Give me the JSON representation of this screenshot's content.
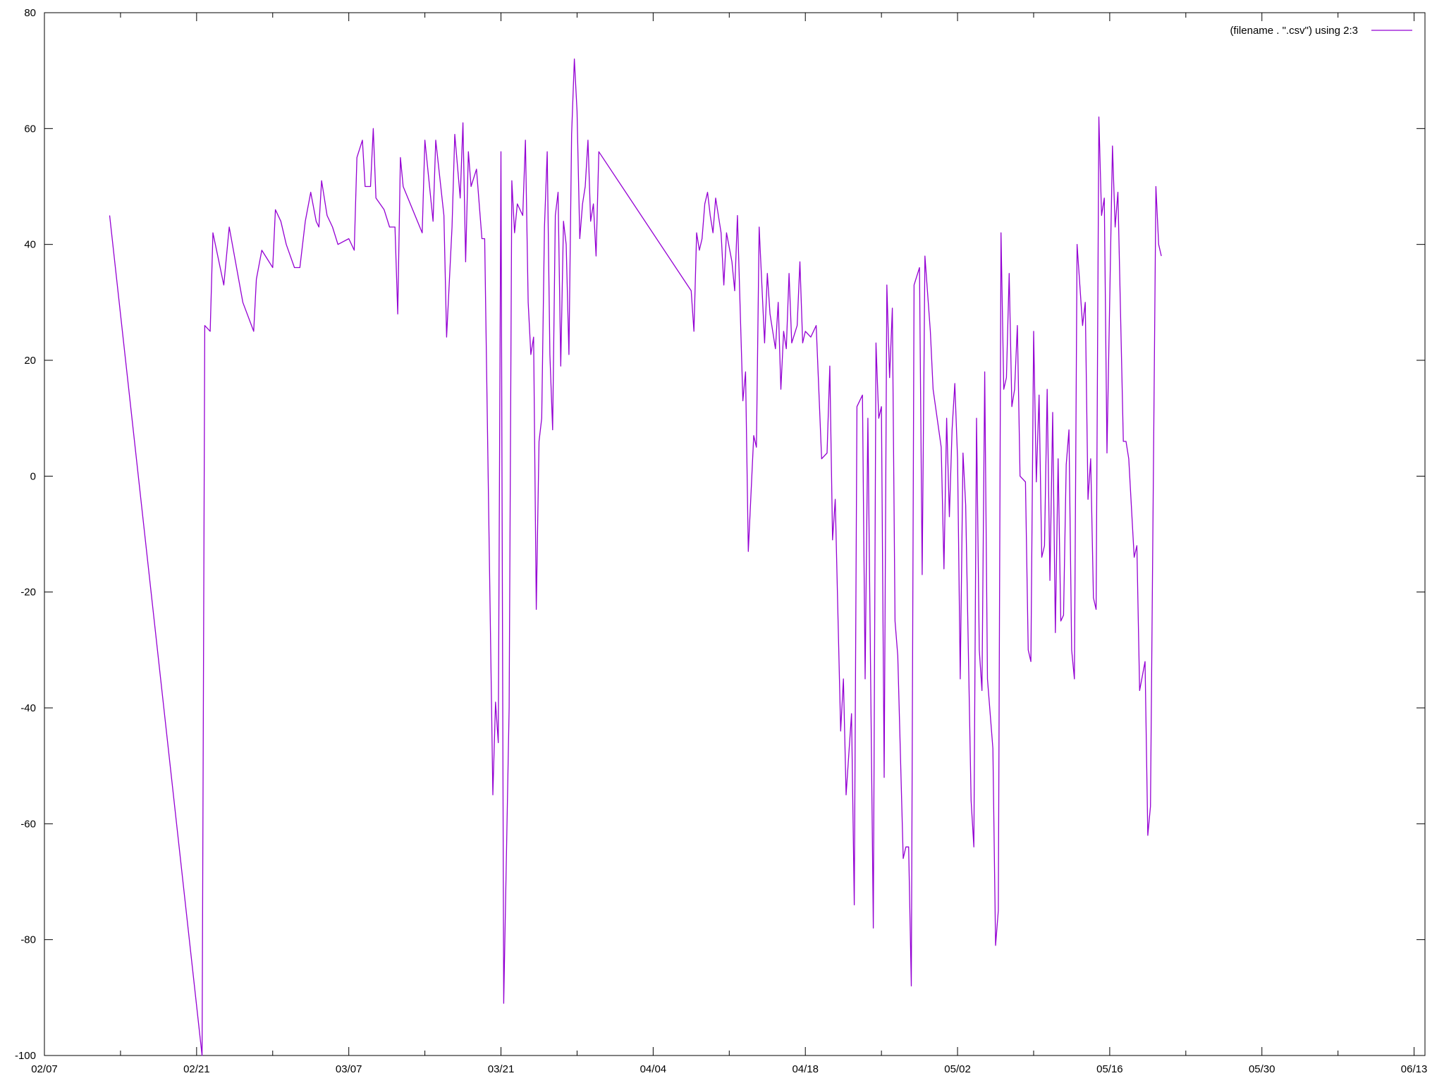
{
  "chart_data": {
    "type": "line",
    "title": "",
    "xlabel": "",
    "ylabel": "",
    "x_axis": {
      "type": "date",
      "range": [
        "2000-02-07",
        "2000-06-13"
      ],
      "tick_format": "MM/DD",
      "major_ticks": [
        "02/07",
        "02/21",
        "03/07",
        "03/21",
        "04/04",
        "04/18",
        "05/02",
        "05/16",
        "05/30",
        "06/13"
      ],
      "minor_tick_step_days": 7
    },
    "y_axis": {
      "range": [
        -100,
        80
      ],
      "ticks": [
        -100,
        -80,
        -60,
        -40,
        -20,
        0,
        20,
        40,
        60,
        80
      ]
    },
    "grid": false,
    "legend": {
      "position": "top-right"
    },
    "series": [
      {
        "name": "(filename . \".csv\") using 2:3",
        "color": "#9400d3",
        "points": [
          [
            "2000-02-13",
            45
          ],
          [
            "2000-02-21 12:00",
            -100
          ],
          [
            "2000-02-21 18:00",
            26
          ],
          [
            "2000-02-22 06:00",
            25
          ],
          [
            "2000-02-22 12:00",
            42
          ],
          [
            "2000-02-23 12:00",
            33
          ],
          [
            "2000-02-24",
            43
          ],
          [
            "2000-02-25 06:00",
            30
          ],
          [
            "2000-02-26 06:00",
            25
          ],
          [
            "2000-02-26 12:00",
            34
          ],
          [
            "2000-02-27",
            39
          ],
          [
            "2000-02-28",
            36
          ],
          [
            "2000-02-28 06:00",
            46
          ],
          [
            "2000-02-28 18:00",
            44
          ],
          [
            "2000-02-29 06:00",
            40
          ],
          [
            "2000-03-01",
            36
          ],
          [
            "2000-03-01 12:00",
            36
          ],
          [
            "2000-03-02",
            44
          ],
          [
            "2000-03-02 12:00",
            49
          ],
          [
            "2000-03-03",
            44
          ],
          [
            "2000-03-03 06:00",
            43
          ],
          [
            "2000-03-03 12:00",
            51
          ],
          [
            "2000-03-04",
            45
          ],
          [
            "2000-03-04 12:00",
            43
          ],
          [
            "2000-03-05",
            40
          ],
          [
            "2000-03-06",
            41
          ],
          [
            "2000-03-06 12:00",
            39
          ],
          [
            "2000-03-06 18:00",
            55
          ],
          [
            "2000-03-07 06:00",
            58
          ],
          [
            "2000-03-07 12:00",
            50
          ],
          [
            "2000-03-08",
            50
          ],
          [
            "2000-03-08 06:00",
            60
          ],
          [
            "2000-03-08 12:00",
            48
          ],
          [
            "2000-03-09 06:00",
            46
          ],
          [
            "2000-03-09 18:00",
            43
          ],
          [
            "2000-03-10 06:00",
            43
          ],
          [
            "2000-03-10 12:00",
            28
          ],
          [
            "2000-03-10 18:00",
            55
          ],
          [
            "2000-03-11",
            50
          ],
          [
            "2000-03-12 18:00",
            42
          ],
          [
            "2000-03-13",
            58
          ],
          [
            "2000-03-13 18:00",
            44
          ],
          [
            "2000-03-14",
            58
          ],
          [
            "2000-03-14 18:00",
            45
          ],
          [
            "2000-03-15",
            24
          ],
          [
            "2000-03-15 12:00",
            43
          ],
          [
            "2000-03-15 18:00",
            59
          ],
          [
            "2000-03-16 06:00",
            48
          ],
          [
            "2000-03-16 12:00",
            61
          ],
          [
            "2000-03-16 18:00",
            37
          ],
          [
            "2000-03-17",
            56
          ],
          [
            "2000-03-17 06:00",
            50
          ],
          [
            "2000-03-17 18:00",
            53
          ],
          [
            "2000-03-18 06:00",
            41
          ],
          [
            "2000-03-18 12:00",
            41
          ],
          [
            "2000-03-19 06:00",
            -55
          ],
          [
            "2000-03-19 12:00",
            -39
          ],
          [
            "2000-03-19 18:00",
            -46
          ],
          [
            "2000-03-20",
            56
          ],
          [
            "2000-03-20 06:00",
            -91
          ],
          [
            "2000-03-20 18:00",
            -40
          ],
          [
            "2000-03-21",
            51
          ],
          [
            "2000-03-21 06:00",
            42
          ],
          [
            "2000-03-21 12:00",
            47
          ],
          [
            "2000-03-22",
            45
          ],
          [
            "2000-03-22 06:00",
            58
          ],
          [
            "2000-03-22 12:00",
            30
          ],
          [
            "2000-03-22 18:00",
            21
          ],
          [
            "2000-03-23",
            24
          ],
          [
            "2000-03-23 06:00",
            -23
          ],
          [
            "2000-03-23 12:00",
            6
          ],
          [
            "2000-03-23 18:00",
            10
          ],
          [
            "2000-03-24",
            43
          ],
          [
            "2000-03-24 06:00",
            56
          ],
          [
            "2000-03-24 12:00",
            21
          ],
          [
            "2000-03-24 18:00",
            8
          ],
          [
            "2000-03-25",
            45
          ],
          [
            "2000-03-25 06:00",
            49
          ],
          [
            "2000-03-25 12:00",
            19
          ],
          [
            "2000-03-25 18:00",
            44
          ],
          [
            "2000-03-26",
            40
          ],
          [
            "2000-03-26 06:00",
            21
          ],
          [
            "2000-03-26 12:00",
            59
          ],
          [
            "2000-03-26 18:00",
            72
          ],
          [
            "2000-03-27",
            63
          ],
          [
            "2000-03-27 06:00",
            41
          ],
          [
            "2000-03-27 12:00",
            47
          ],
          [
            "2000-03-27 18:00",
            50
          ],
          [
            "2000-03-28",
            58
          ],
          [
            "2000-03-28 06:00",
            44
          ],
          [
            "2000-03-28 12:00",
            47
          ],
          [
            "2000-03-28 18:00",
            38
          ],
          [
            "2000-03-29",
            56
          ],
          [
            "2000-04-06 12:00",
            32
          ],
          [
            "2000-04-06 18:00",
            25
          ],
          [
            "2000-04-07",
            42
          ],
          [
            "2000-04-07 06:00",
            39
          ],
          [
            "2000-04-07 12:00",
            41
          ],
          [
            "2000-04-07 18:00",
            47
          ],
          [
            "2000-04-08",
            49
          ],
          [
            "2000-04-08 06:00",
            45
          ],
          [
            "2000-04-08 12:00",
            42
          ],
          [
            "2000-04-08 18:00",
            48
          ],
          [
            "2000-04-09 06:00",
            42
          ],
          [
            "2000-04-09 12:00",
            33
          ],
          [
            "2000-04-09 18:00",
            42
          ],
          [
            "2000-04-10 06:00",
            37
          ],
          [
            "2000-04-10 12:00",
            32
          ],
          [
            "2000-04-10 18:00",
            45
          ],
          [
            "2000-04-11 06:00",
            13
          ],
          [
            "2000-04-11 12:00",
            18
          ],
          [
            "2000-04-11 18:00",
            -13
          ],
          [
            "2000-04-12 06:00",
            7
          ],
          [
            "2000-04-12 12:00",
            5
          ],
          [
            "2000-04-12 18:00",
            43
          ],
          [
            "2000-04-13 06:00",
            23
          ],
          [
            "2000-04-13 12:00",
            35
          ],
          [
            "2000-04-13 18:00",
            28
          ],
          [
            "2000-04-14 06:00",
            22
          ],
          [
            "2000-04-14 12:00",
            30
          ],
          [
            "2000-04-14 18:00",
            15
          ],
          [
            "2000-04-15",
            25
          ],
          [
            "2000-04-15 06:00",
            22
          ],
          [
            "2000-04-15 12:00",
            35
          ],
          [
            "2000-04-15 18:00",
            23
          ],
          [
            "2000-04-16 06:00",
            26
          ],
          [
            "2000-04-16 12:00",
            37
          ],
          [
            "2000-04-16 18:00",
            23
          ],
          [
            "2000-04-17",
            25
          ],
          [
            "2000-04-17 12:00",
            24
          ],
          [
            "2000-04-18",
            26
          ],
          [
            "2000-04-18 12:00",
            3
          ],
          [
            "2000-04-19",
            4
          ],
          [
            "2000-04-19 06:00",
            19
          ],
          [
            "2000-04-19 12:00",
            -11
          ],
          [
            "2000-04-19 18:00",
            -4
          ],
          [
            "2000-04-20 06:00",
            -44
          ],
          [
            "2000-04-20 12:00",
            -35
          ],
          [
            "2000-04-20 18:00",
            -55
          ],
          [
            "2000-04-21 06:00",
            -41
          ],
          [
            "2000-04-21 12:00",
            -74
          ],
          [
            "2000-04-21 18:00",
            12
          ],
          [
            "2000-04-22 06:00",
            14
          ],
          [
            "2000-04-22 12:00",
            -35
          ],
          [
            "2000-04-22 18:00",
            10
          ],
          [
            "2000-04-23 06:00",
            -78
          ],
          [
            "2000-04-23 12:00",
            23
          ],
          [
            "2000-04-23 18:00",
            10
          ],
          [
            "2000-04-24",
            12
          ],
          [
            "2000-04-24 06:00",
            -52
          ],
          [
            "2000-04-24 12:00",
            33
          ],
          [
            "2000-04-24 18:00",
            17
          ],
          [
            "2000-04-25",
            29
          ],
          [
            "2000-04-25 06:00",
            -25
          ],
          [
            "2000-04-25 12:00",
            -31
          ],
          [
            "2000-04-26",
            -66
          ],
          [
            "2000-04-26 06:00",
            -64
          ],
          [
            "2000-04-26 12:00",
            -64
          ],
          [
            "2000-04-26 18:00",
            -88
          ],
          [
            "2000-04-27",
            33
          ],
          [
            "2000-04-27 12:00",
            36
          ],
          [
            "2000-04-27 18:00",
            -17
          ],
          [
            "2000-04-28",
            38
          ],
          [
            "2000-04-28 12:00",
            25
          ],
          [
            "2000-04-28 18:00",
            15
          ],
          [
            "2000-04-29 12:00",
            5
          ],
          [
            "2000-04-29 18:00",
            -16
          ],
          [
            "2000-04-30",
            10
          ],
          [
            "2000-04-30 06:00",
            -7
          ],
          [
            "2000-04-30 12:00",
            8
          ],
          [
            "2000-04-30 18:00",
            16
          ],
          [
            "2000-05-01",
            3
          ],
          [
            "2000-05-01 06:00",
            -35
          ],
          [
            "2000-05-01 12:00",
            4
          ],
          [
            "2000-05-01 18:00",
            -5
          ],
          [
            "2000-05-02 06:00",
            -56
          ],
          [
            "2000-05-02 12:00",
            -64
          ],
          [
            "2000-05-02 18:00",
            10
          ],
          [
            "2000-05-03",
            -30
          ],
          [
            "2000-05-03 06:00",
            -37
          ],
          [
            "2000-05-03 12:00",
            18
          ],
          [
            "2000-05-03 18:00",
            -35
          ],
          [
            "2000-05-04 06:00",
            -47
          ],
          [
            "2000-05-04 12:00",
            -81
          ],
          [
            "2000-05-04 18:00",
            -75
          ],
          [
            "2000-05-05",
            42
          ],
          [
            "2000-05-05 06:00",
            15
          ],
          [
            "2000-05-05 12:00",
            17
          ],
          [
            "2000-05-05 18:00",
            35
          ],
          [
            "2000-05-06",
            12
          ],
          [
            "2000-05-06 06:00",
            15
          ],
          [
            "2000-05-06 12:00",
            26
          ],
          [
            "2000-05-06 18:00",
            0
          ],
          [
            "2000-05-07 06:00",
            -1
          ],
          [
            "2000-05-07 12:00",
            -30
          ],
          [
            "2000-05-07 18:00",
            -32
          ],
          [
            "2000-05-08",
            25
          ],
          [
            "2000-05-08 06:00",
            -1
          ],
          [
            "2000-05-08 12:00",
            14
          ],
          [
            "2000-05-08 18:00",
            -14
          ],
          [
            "2000-05-09",
            -12
          ],
          [
            "2000-05-09 06:00",
            15
          ],
          [
            "2000-05-09 12:00",
            -18
          ],
          [
            "2000-05-09 18:00",
            11
          ],
          [
            "2000-05-10",
            -27
          ],
          [
            "2000-05-10 06:00",
            3
          ],
          [
            "2000-05-10 12:00",
            -25
          ],
          [
            "2000-05-10 18:00",
            -24
          ],
          [
            "2000-05-11",
            2
          ],
          [
            "2000-05-11 06:00",
            8
          ],
          [
            "2000-05-11 12:00",
            -30
          ],
          [
            "2000-05-11 18:00",
            -35
          ],
          [
            "2000-05-12",
            40
          ],
          [
            "2000-05-12 06:00",
            33
          ],
          [
            "2000-05-12 12:00",
            26
          ],
          [
            "2000-05-12 18:00",
            30
          ],
          [
            "2000-05-13",
            -4
          ],
          [
            "2000-05-13 06:00",
            3
          ],
          [
            "2000-05-13 12:00",
            -21
          ],
          [
            "2000-05-13 18:00",
            -23
          ],
          [
            "2000-05-14",
            62
          ],
          [
            "2000-05-14 06:00",
            45
          ],
          [
            "2000-05-14 12:00",
            48
          ],
          [
            "2000-05-14 18:00",
            4
          ],
          [
            "2000-05-15 06:00",
            57
          ],
          [
            "2000-05-15 12:00",
            43
          ],
          [
            "2000-05-15 18:00",
            49
          ],
          [
            "2000-05-16 06:00",
            6
          ],
          [
            "2000-05-16 12:00",
            6
          ],
          [
            "2000-05-16 18:00",
            3
          ],
          [
            "2000-05-17 06:00",
            -14
          ],
          [
            "2000-05-17 12:00",
            -12
          ],
          [
            "2000-05-17 18:00",
            -37
          ],
          [
            "2000-05-18 06:00",
            -32
          ],
          [
            "2000-05-18 12:00",
            -62
          ],
          [
            "2000-05-18 18:00",
            -57
          ],
          [
            "2000-05-19 06:00",
            50
          ],
          [
            "2000-05-19 12:00",
            40
          ],
          [
            "2000-05-19 18:00",
            38
          ]
        ]
      }
    ]
  }
}
